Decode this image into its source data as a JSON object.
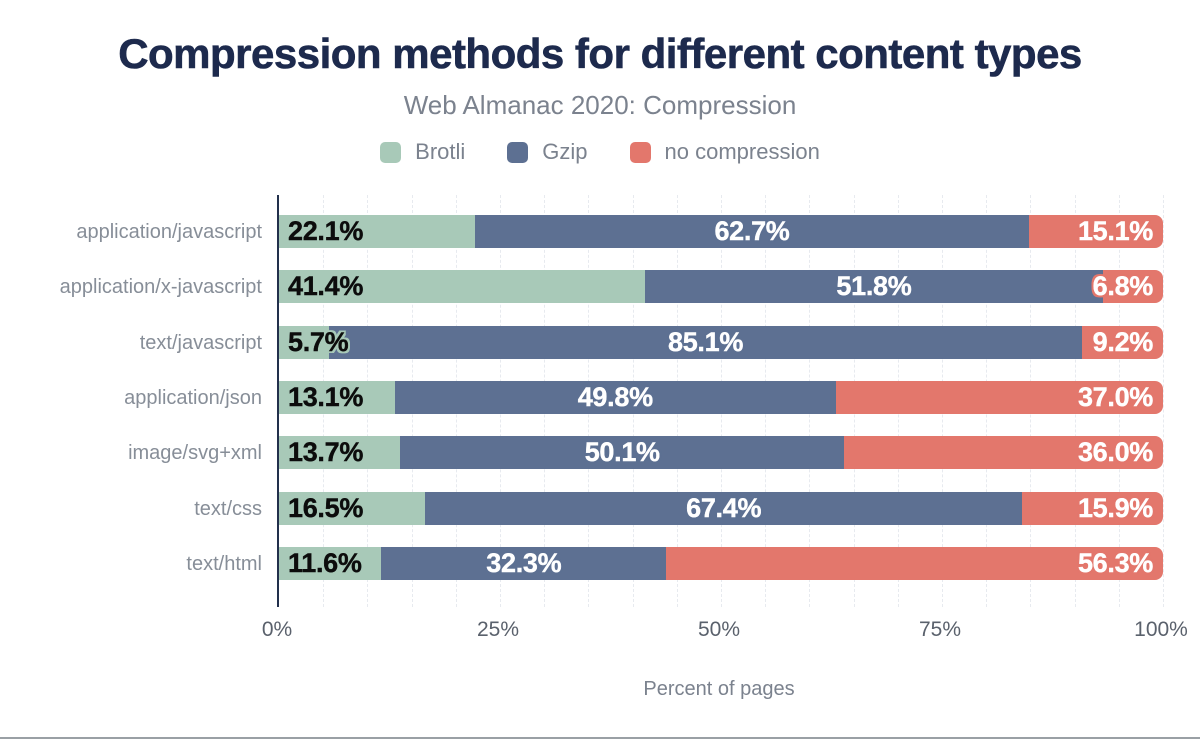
{
  "chart_data": {
    "type": "bar",
    "stacked": true,
    "orientation": "horizontal",
    "title": "Compression methods for different content types",
    "subtitle": "Web Almanac 2020: Compression",
    "categories": [
      "application/javascript",
      "application/x-javascript",
      "text/javascript",
      "application/json",
      "image/svg+xml",
      "text/css",
      "text/html"
    ],
    "series": [
      {
        "name": "Brotli",
        "color": "#a8c9b8",
        "label_text_color": "#0c0c0c",
        "values": [
          22.1,
          41.4,
          5.7,
          13.1,
          13.7,
          16.5,
          11.6
        ]
      },
      {
        "name": "Gzip",
        "color": "#5d7092",
        "label_text_color": "#ffffff",
        "values": [
          62.7,
          51.8,
          85.1,
          49.8,
          50.1,
          67.4,
          32.3
        ]
      },
      {
        "name": "no compression",
        "color": "#e3776c",
        "label_text_color": "#ffffff",
        "values": [
          15.1,
          6.8,
          9.2,
          37.0,
          36.0,
          15.9,
          56.3
        ]
      }
    ],
    "xlabel": "Percent of pages",
    "x_ticks": [
      "0%",
      "25%",
      "50%",
      "75%",
      "100%"
    ],
    "xlim": [
      0,
      100
    ],
    "grid": {
      "vertical": true,
      "interval_percent": 5,
      "style": "dashed"
    },
    "legend_position": "top",
    "value_label_format": "one-decimal-percent"
  },
  "colors": {
    "title_text": "#1d2a4d",
    "muted_text": "#7b828e",
    "category_text": "#878e98",
    "tick_text": "#5a616c",
    "axis_line": "#22304c",
    "gridline": "#e7eaef",
    "bottom_divider": "#9aa0a5",
    "background": "#ffffff"
  }
}
